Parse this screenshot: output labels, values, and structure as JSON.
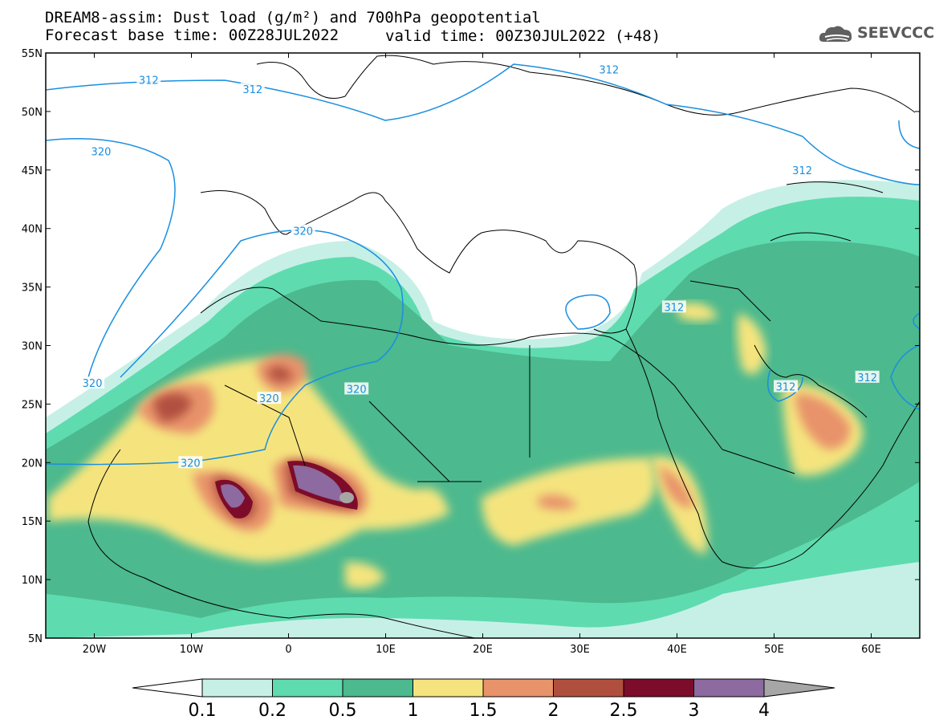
{
  "title": {
    "line1": "DREAM8-assim: Dust load (g/m²) and 700hPa geopotential",
    "line2": "Forecast base time: 00Z28JUL2022",
    "line2b": "valid time: 00Z30JUL2022 (+48)"
  },
  "logo": {
    "text": "SEEVCCC",
    "icon": "cloud-logo-icon"
  },
  "map": {
    "lon_range": [
      -25,
      65
    ],
    "lat_range": [
      5,
      55
    ],
    "lon_ticks": [
      {
        "value": -20,
        "label": "20W"
      },
      {
        "value": -10,
        "label": "10W"
      },
      {
        "value": 0,
        "label": "0"
      },
      {
        "value": 10,
        "label": "10E"
      },
      {
        "value": 20,
        "label": "20E"
      },
      {
        "value": 30,
        "label": "30E"
      },
      {
        "value": 40,
        "label": "40E"
      },
      {
        "value": 50,
        "label": "50E"
      },
      {
        "value": 60,
        "label": "60E"
      }
    ],
    "lat_ticks": [
      {
        "value": 55,
        "label": "55N"
      },
      {
        "value": 50,
        "label": "50N"
      },
      {
        "value": 45,
        "label": "45N"
      },
      {
        "value": 40,
        "label": "40N"
      },
      {
        "value": 35,
        "label": "35N"
      },
      {
        "value": 30,
        "label": "30N"
      },
      {
        "value": 25,
        "label": "25N"
      },
      {
        "value": 20,
        "label": "20N"
      },
      {
        "value": 15,
        "label": "15N"
      },
      {
        "value": 10,
        "label": "10N"
      },
      {
        "value": 5,
        "label": "5N"
      }
    ],
    "contour_labels": [
      {
        "text": "312",
        "lon": -14.4,
        "lat": 52.7
      },
      {
        "text": "312",
        "lon": -3.7,
        "lat": 51.9
      },
      {
        "text": "312",
        "lon": 33.0,
        "lat": 53.6
      },
      {
        "text": "312",
        "lon": 52.9,
        "lat": 45.0
      },
      {
        "text": "312",
        "lon": 39.7,
        "lat": 33.3
      },
      {
        "text": "312",
        "lon": 59.6,
        "lat": 27.3
      },
      {
        "text": "312",
        "lon": 51.2,
        "lat": 26.5
      },
      {
        "text": "320",
        "lon": -19.3,
        "lat": 46.6
      },
      {
        "text": "320",
        "lon": 1.5,
        "lat": 39.8
      },
      {
        "text": "320",
        "lon": 7.0,
        "lat": 26.3
      },
      {
        "text": "320",
        "lon": -2.0,
        "lat": 25.5
      },
      {
        "text": "320",
        "lon": -10.1,
        "lat": 20.0
      },
      {
        "text": "320",
        "lon": -20.2,
        "lat": 26.8
      }
    ],
    "colors": {
      "land_outline": "#000000",
      "contour": "#1a8fe0",
      "ocean": "#ffffff"
    }
  },
  "colorbar": {
    "labels": [
      "0.1",
      "0.2",
      "0.5",
      "1",
      "1.5",
      "2",
      "2.5",
      "3",
      "4"
    ],
    "colors": [
      "#c6f0e6",
      "#5fdbb0",
      "#4cb98e",
      "#f5e47e",
      "#e8936a",
      "#b14f3f",
      "#7d0c2a",
      "#8d6aa0"
    ],
    "low_color": "#ffffff",
    "high_color": "#a6a6a6"
  }
}
